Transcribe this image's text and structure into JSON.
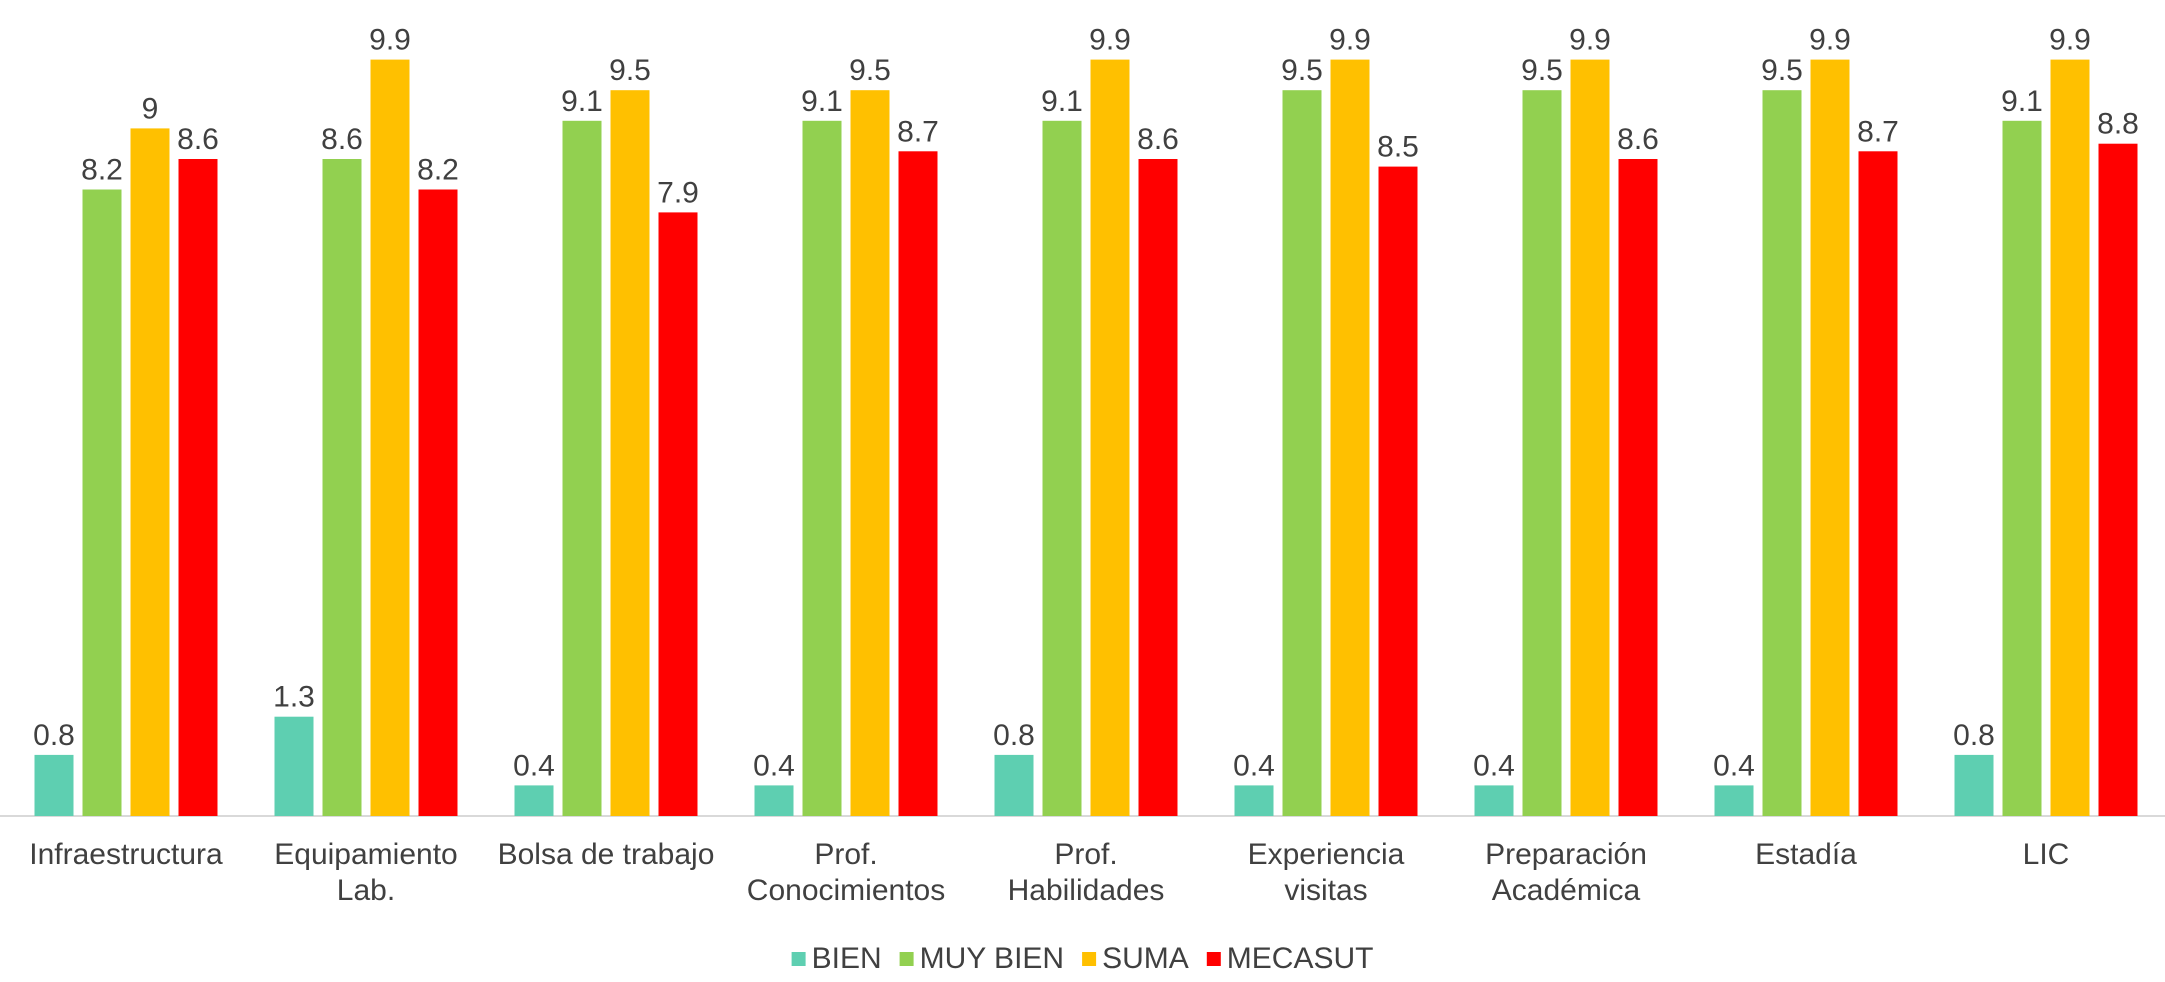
{
  "chart_data": {
    "type": "bar",
    "categories": [
      [
        "Infraestructura"
      ],
      [
        "Equipamiento",
        "Lab."
      ],
      [
        "Bolsa de trabajo"
      ],
      [
        "Prof.",
        "Conocimientos"
      ],
      [
        "Prof.",
        "Habilidades"
      ],
      [
        "Experiencia",
        "visitas"
      ],
      [
        "Preparación",
        "Académica"
      ],
      [
        "Estadía"
      ],
      [
        "LIC"
      ]
    ],
    "series": [
      {
        "name": "BIEN",
        "color": "#5ecfb1",
        "values": [
          0.8,
          1.3,
          0.4,
          0.4,
          0.8,
          0.4,
          0.4,
          0.4,
          0.8
        ],
        "labels": [
          "0.8",
          "1.3",
          "0.4",
          "0.4",
          "0.8",
          "0.4",
          "0.4",
          "0.4",
          "0.8"
        ]
      },
      {
        "name": "MUY BIEN",
        "color": "#92d050",
        "values": [
          8.2,
          8.6,
          9.1,
          9.1,
          9.1,
          9.5,
          9.5,
          9.5,
          9.1
        ],
        "labels": [
          "8.2",
          "8.6",
          "9.1",
          "9.1",
          "9.1",
          "9.5",
          "9.5",
          "9.5",
          "9.1"
        ]
      },
      {
        "name": "SUMA",
        "color": "#ffc000",
        "values": [
          9,
          9.9,
          9.5,
          9.5,
          9.9,
          9.9,
          9.9,
          9.9,
          9.9
        ],
        "labels": [
          "9",
          "9.9",
          "9.5",
          "9.5",
          "9.9",
          "9.9",
          "9.9",
          "9.9",
          "9.9"
        ]
      },
      {
        "name": "MECASUT",
        "color": "#ff0000",
        "values": [
          8.6,
          8.2,
          7.9,
          8.7,
          8.6,
          8.5,
          8.6,
          8.7,
          8.8
        ],
        "labels": [
          "8.6",
          "8.2",
          "7.9",
          "8.7",
          "8.6",
          "8.5",
          "8.6",
          "8.7",
          "8.8"
        ]
      }
    ],
    "ylim": [
      0,
      10
    ],
    "grid": false,
    "legend_position": "bottom",
    "title": "",
    "xlabel": "",
    "ylabel": ""
  }
}
